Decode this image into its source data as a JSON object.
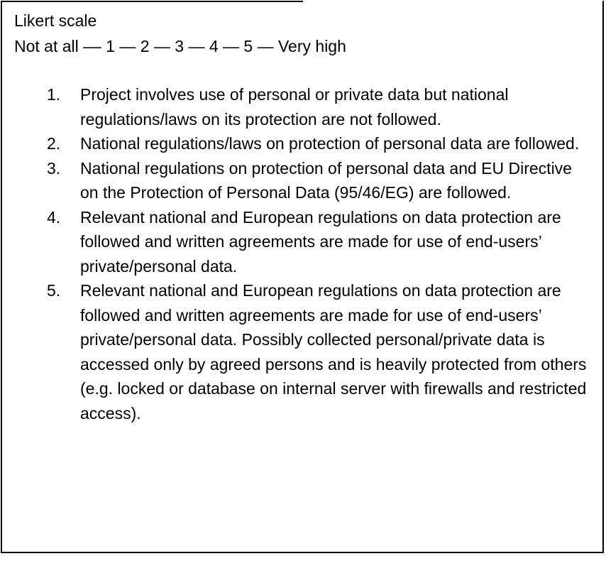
{
  "header": {
    "title": "Likert scale",
    "range": "Not at all –– 1 — 2 — 3 — 4 — 5 — Very high"
  },
  "items": [
    {
      "number": "1.",
      "text": "Project involves use of personal or private data but national regulations/laws on its protection are not followed."
    },
    {
      "number": "2.",
      "text": "National regulations/laws on protection of personal data are followed."
    },
    {
      "number": "3.",
      "text": "National regulations on protection of personal data and EU Directive on the Protection of Personal Data (95/46/EG) are followed."
    },
    {
      "number": "4.",
      "text": "Relevant national and European regulations on data protection are followed and written agreements are made for use of end-users’ private/personal data."
    },
    {
      "number": "5.",
      "text": "Relevant national and European regulations on data protection are followed and written agreements are made for use of end-users’ private/personal data. Possibly collected personal/private data is accessed only by agreed persons and is heavily protected from others (e.g. locked or database on internal server with firewalls and restricted access)."
    }
  ]
}
